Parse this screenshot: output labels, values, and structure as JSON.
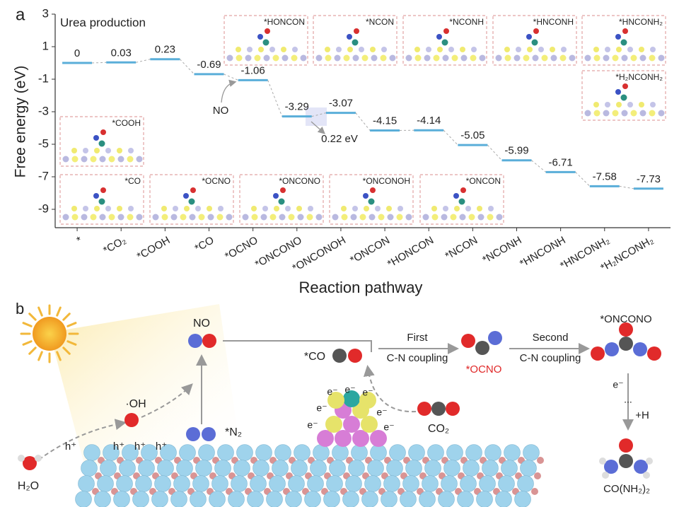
{
  "chart_data": {
    "type": "energy-levels",
    "panel_label": "a",
    "title": "Urea production",
    "ylabel": "Free energy (eV)",
    "xlabel": "Reaction pathway",
    "categories": [
      "*",
      "*CO₂",
      "*COOH",
      "*CO",
      "*OCNO",
      "*ONCONO",
      "*ONCONOH",
      "*ONCON",
      "*HONCON",
      "*NCON",
      "*NCONH",
      "*HNCONH",
      "*HNCONH₂",
      "*H₂NCONH₂"
    ],
    "values": [
      0,
      0.03,
      0.23,
      -0.69,
      -1.06,
      -3.29,
      -3.07,
      -4.15,
      -4.14,
      -5.05,
      -5.99,
      -6.71,
      -7.58,
      -7.73
    ],
    "color": "#5aaed9",
    "ylim": [
      -10,
      3
    ],
    "yticks": [
      3,
      1,
      -1,
      -3,
      -5,
      -7,
      -9
    ],
    "annotations": [
      "NO",
      "0.22 eV"
    ],
    "inset_labels": [
      "*HONCON",
      "*NCON",
      "*NCONH",
      "*HNCONH",
      "*HNCONH₂",
      "*H₂NCONH₂",
      "*COOH",
      "*CO",
      "*OCNO",
      "*ONCONO",
      "*ONCONOH",
      "*ONCON"
    ]
  },
  "schematic": {
    "panel_label": "b",
    "no": "NO",
    "oh": "·OH",
    "holes": [
      "h⁺",
      "h⁺",
      "h⁺",
      "h⁺"
    ],
    "water": "H₂O",
    "n2": "*N₂",
    "co": "*CO",
    "electrons": [
      "e⁻",
      "e⁻",
      "e⁻",
      "e⁻",
      "e⁻",
      "e⁻",
      "e⁻"
    ],
    "co2": "CO₂",
    "first": "First",
    "first_sub": "C-N coupling",
    "ocno": "*OCNO",
    "second": "Second",
    "second_sub": "C-N coupling",
    "onc": "*ONCONO",
    "e_step": "e⁻",
    "dots": "...",
    "plus_h": "+H",
    "urea": "CO(NH₂)₂"
  }
}
